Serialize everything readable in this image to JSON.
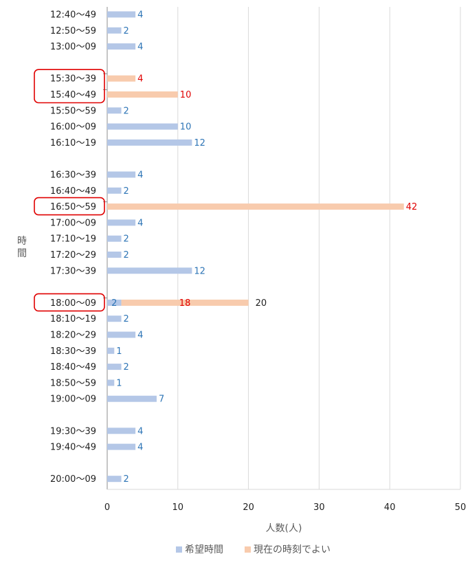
{
  "chart_data": {
    "type": "bar",
    "orientation": "horizontal",
    "stacked": true,
    "categories": [
      "12:40〜49",
      "12:50〜59",
      "13:00〜09",
      "",
      "15:30〜39",
      "15:40〜49",
      "15:50〜59",
      "16:00〜09",
      "16:10〜19",
      "",
      "16:30〜39",
      "16:40〜49",
      "16:50〜59",
      "17:00〜09",
      "17:10〜19",
      "17:20〜29",
      "17:30〜39",
      "",
      "18:00〜09",
      "18:10〜19",
      "18:20〜29",
      "18:30〜39",
      "18:40〜49",
      "18:50〜59",
      "19:00〜09",
      "",
      "19:30〜39",
      "19:40〜49",
      "",
      "20:00〜09"
    ],
    "series": [
      {
        "name": "希望時間",
        "color": "#b4c7e7",
        "label_color": "#2e75b6",
        "values": [
          4,
          2,
          4,
          null,
          null,
          null,
          2,
          10,
          12,
          null,
          4,
          2,
          null,
          4,
          2,
          2,
          12,
          null,
          2,
          2,
          4,
          1,
          2,
          1,
          7,
          null,
          4,
          4,
          null,
          2
        ]
      },
      {
        "name": "現在の時刻でよい",
        "color": "#f8cbad",
        "label_color": "#e00000",
        "values": [
          null,
          null,
          null,
          null,
          4,
          10,
          null,
          null,
          null,
          null,
          null,
          null,
          42,
          null,
          null,
          null,
          null,
          null,
          18,
          null,
          null,
          null,
          null,
          null,
          null,
          null,
          null,
          null,
          null,
          null
        ]
      }
    ],
    "totals": [
      {
        "category": "18:00〜09",
        "value": 20
      }
    ],
    "highlighted_categories": [
      "15:30〜39",
      "15:40〜49",
      "16:50〜59",
      "18:00〜09"
    ],
    "xlabel": "人数(人)",
    "ylabel": "時間",
    "xlim": [
      0,
      50
    ],
    "xticks": [
      0,
      10,
      20,
      30,
      40,
      50
    ],
    "grid": true,
    "legend_position": "bottom"
  }
}
